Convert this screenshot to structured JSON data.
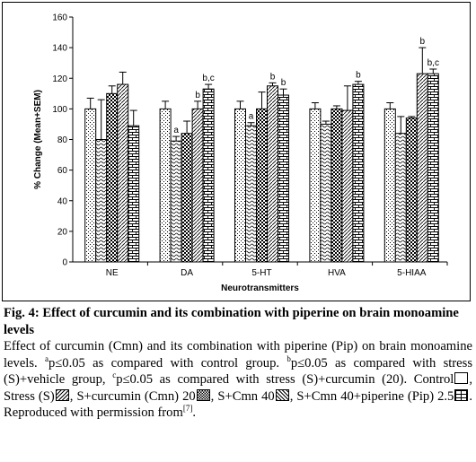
{
  "chart_data": {
    "type": "bar",
    "ylabel": "% Change (Mean+SEM)",
    "xlabel": "Neurotransmitters",
    "ylim": [
      0,
      160
    ],
    "yticks": [
      0,
      20,
      40,
      60,
      80,
      100,
      120,
      140,
      160
    ],
    "categories": [
      "NE",
      "DA",
      "5-HT",
      "HVA",
      "5-HIAA"
    ],
    "series": [
      {
        "name": "Control",
        "pattern": "dots",
        "values": [
          100,
          100,
          100,
          100,
          100
        ],
        "errors": [
          7,
          5,
          5,
          4,
          4
        ],
        "labels": [
          "",
          "",
          "",
          "",
          ""
        ]
      },
      {
        "name": "Stress (S)",
        "pattern": "wave",
        "values": [
          80,
          79,
          89,
          90,
          84
        ],
        "errors": [
          26,
          3,
          2,
          2,
          11
        ],
        "labels": [
          "",
          "a",
          "a",
          "",
          ""
        ]
      },
      {
        "name": "S+curcumin (Cmn) 20",
        "pattern": "check",
        "values": [
          110,
          84,
          100,
          100,
          94
        ],
        "errors": [
          5,
          8,
          11,
          2,
          1
        ],
        "labels": [
          "",
          "",
          "",
          "",
          ""
        ]
      },
      {
        "name": "S+Cmn 40",
        "pattern": "diag",
        "values": [
          116,
          100,
          115,
          99,
          123
        ],
        "errors": [
          8,
          5,
          2,
          16,
          17
        ],
        "labels": [
          "",
          "b",
          "b",
          "",
          "b"
        ]
      },
      {
        "name": "S+Cmn 40+piperine (Pip) 2.5",
        "pattern": "brick",
        "values": [
          89,
          113,
          109,
          116,
          123
        ],
        "errors": [
          10,
          3,
          4,
          2,
          3
        ],
        "labels": [
          "",
          "b,c",
          "b",
          "b",
          "b,c"
        ]
      }
    ],
    "grid": false,
    "legend": "in caption"
  },
  "caption": {
    "title": "Fig. 4: Effect of curcumin and its combination with piperine on brain monoamine levels",
    "p1": "Effect of curcumin (Cmn) and its combination with piperine (Pip) on brain monoamine levels. ",
    "sup_a": "a",
    "p2": "p≤0.05 as compared with control group. ",
    "sup_b": "b",
    "p3": "p≤0.05 as compared with stress (S)+vehicle group, ",
    "sup_c": "c",
    "p4": "p≤0.05 as compared with stress (S)+curcumin (20). Control",
    "l_stress": ", Stress (S)",
    "l_cmn20": ", S+curcumin (Cmn) 20",
    "l_cmn40": ", S+Cmn 40",
    "l_pip": ", S+Cmn 40+piperine (Pip) 2.5",
    "repro": ". Reproduced with permission from",
    "ref": "[7]",
    "end": "."
  }
}
